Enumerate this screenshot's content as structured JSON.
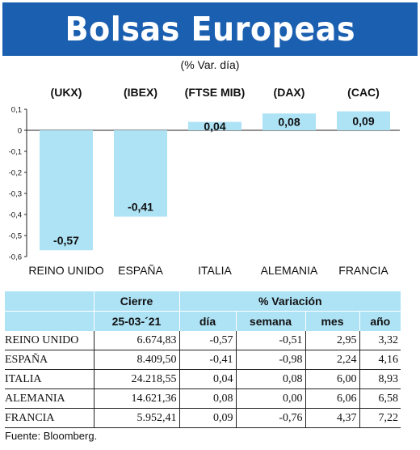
{
  "header": {
    "title": "Bolsas Europeas",
    "subtitle": "(% Var. día)"
  },
  "chart_data": {
    "type": "bar",
    "categories": [
      "REINO UNIDO",
      "ESPAÑA",
      "ITALIA",
      "ALEMANIA",
      "FRANCIA"
    ],
    "index_labels": [
      "(UKX)",
      "(IBEX)",
      "(FTSE MIB)",
      "(DAX)",
      "(CAC)"
    ],
    "values": [
      -0.57,
      -0.41,
      0.04,
      0.08,
      0.09
    ],
    "value_labels": [
      "-0,57",
      "-0,41",
      "0,04",
      "0,08",
      "0,09"
    ],
    "yticks": [
      0.1,
      0,
      -0.1,
      -0.2,
      -0.3,
      -0.4,
      -0.5,
      -0.6
    ],
    "ytick_labels": [
      "0,1",
      "0",
      "-0,1",
      "-0,2",
      "-0,3",
      "-0,4",
      "-0,5",
      "-0,6"
    ],
    "ylim": [
      -0.6,
      0.1
    ],
    "bar_color": "#aee2f5",
    "grid": false,
    "title": "",
    "xlabel": "",
    "ylabel": ""
  },
  "table": {
    "header_cierre": "Cierre",
    "header_variacion": "% Variación",
    "date": "25-03-´21",
    "sub_headers": [
      "día",
      "semana",
      "mes",
      "año"
    ],
    "header_bg": "#aee2f5",
    "rows": [
      {
        "name": "REINO UNIDO",
        "cierre": "6.674,83",
        "dia": "-0,57",
        "semana": "-0,51",
        "mes": "2,95",
        "ano": "3,32"
      },
      {
        "name": "ESPAÑA",
        "cierre": "8.409,50",
        "dia": "-0,41",
        "semana": "-0,98",
        "mes": "2,24",
        "ano": "4,16"
      },
      {
        "name": "ITALIA",
        "cierre": "24.218,55",
        "dia": "0,04",
        "semana": "0,08",
        "mes": "6,00",
        "ano": "8,93"
      },
      {
        "name": "ALEMANIA",
        "cierre": "14.621,36",
        "dia": "0,08",
        "semana": "0,00",
        "mes": "6,06",
        "ano": "6,58"
      },
      {
        "name": "FRANCIA",
        "cierre": "5.952,41",
        "dia": "0,09",
        "semana": "-0,76",
        "mes": "4,37",
        "ano": "7,22"
      }
    ]
  },
  "footer": {
    "source": "Fuente: Bloomberg."
  }
}
